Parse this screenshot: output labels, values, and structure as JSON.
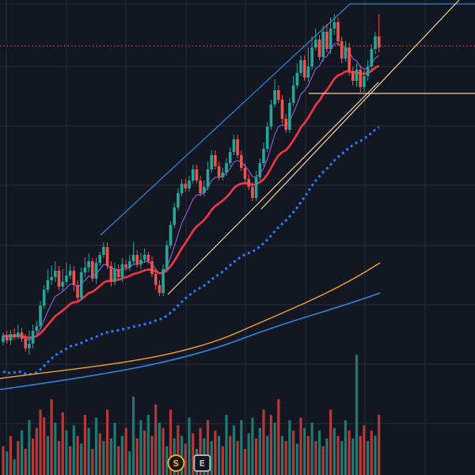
{
  "chart_data": {
    "type": "candlestick",
    "grid": true,
    "background": "#131722",
    "colors": {
      "up": "#26a69a",
      "down": "#ef5350",
      "vol_up": "#1f7a72",
      "vol_down": "#b23a3a",
      "ema_fast": "#7e57c2",
      "ema_mid": "#f23645",
      "ma_dotted": "#2979ff",
      "ma_orange": "#f59f2c",
      "ma_blue": "#2e86de",
      "channel_blue": "#2e86de",
      "channel_cream": "#f5d29b",
      "price_line": "#ef5350"
    },
    "candles": [
      [
        0,
        432,
        424,
        420,
        436
      ],
      [
        1,
        424,
        430,
        418,
        434
      ],
      [
        2,
        430,
        422,
        417,
        436
      ],
      [
        3,
        422,
        426,
        415,
        430
      ],
      [
        4,
        426,
        420,
        410,
        428
      ],
      [
        5,
        420,
        428,
        414,
        432
      ],
      [
        6,
        428,
        440,
        422,
        444
      ],
      [
        7,
        440,
        434,
        418,
        448
      ],
      [
        8,
        434,
        418,
        410,
        440
      ],
      [
        9,
        418,
        412,
        405,
        422
      ],
      [
        10,
        412,
        386,
        380,
        416
      ],
      [
        11,
        386,
        366,
        360,
        390
      ],
      [
        12,
        366,
        354,
        340,
        370
      ],
      [
        13,
        354,
        350,
        335,
        360
      ],
      [
        14,
        350,
        342,
        330,
        356
      ],
      [
        15,
        342,
        362,
        336,
        366
      ],
      [
        16,
        362,
        356,
        340,
        368
      ],
      [
        17,
        356,
        348,
        332,
        360
      ],
      [
        18,
        348,
        342,
        334,
        352
      ],
      [
        19,
        342,
        360,
        336,
        368
      ],
      [
        20,
        360,
        376,
        354,
        380
      ],
      [
        21,
        376,
        344,
        338,
        380
      ],
      [
        22,
        344,
        338,
        325,
        350
      ],
      [
        23,
        338,
        330,
        320,
        344
      ],
      [
        24,
        330,
        352,
        326,
        356
      ],
      [
        25,
        352,
        332,
        326,
        358
      ],
      [
        26,
        332,
        322,
        318,
        336
      ],
      [
        27,
        322,
        312,
        306,
        326
      ],
      [
        28,
        312,
        336,
        306,
        340
      ],
      [
        29,
        336,
        356,
        330,
        362
      ],
      [
        30,
        356,
        340,
        332,
        360
      ],
      [
        31,
        340,
        350,
        334,
        354
      ],
      [
        32,
        350,
        334,
        326,
        356
      ],
      [
        33,
        334,
        338,
        328,
        342
      ],
      [
        34,
        338,
        330,
        322,
        342
      ],
      [
        35,
        330,
        322,
        306,
        334
      ],
      [
        36,
        322,
        334,
        316,
        338
      ],
      [
        37,
        334,
        328,
        320,
        340
      ],
      [
        38,
        328,
        322,
        314,
        332
      ],
      [
        39,
        322,
        330,
        318,
        334
      ],
      [
        40,
        330,
        346,
        324,
        350
      ],
      [
        41,
        346,
        360,
        340,
        366
      ],
      [
        42,
        360,
        370,
        354,
        374
      ],
      [
        43,
        370,
        340,
        334,
        374
      ],
      [
        44,
        340,
        310,
        304,
        344
      ],
      [
        45,
        310,
        284,
        280,
        314
      ],
      [
        46,
        284,
        262,
        256,
        288
      ],
      [
        47,
        262,
        244,
        238,
        266
      ],
      [
        48,
        244,
        232,
        226,
        248
      ],
      [
        49,
        232,
        238,
        226,
        242
      ],
      [
        50,
        238,
        228,
        222,
        242
      ],
      [
        51,
        228,
        214,
        208,
        232
      ],
      [
        52,
        214,
        228,
        208,
        232
      ],
      [
        53,
        228,
        244,
        222,
        248
      ],
      [
        54,
        244,
        236,
        228,
        248
      ],
      [
        55,
        236,
        214,
        204,
        240
      ],
      [
        56,
        214,
        196,
        190,
        218
      ],
      [
        57,
        196,
        210,
        190,
        214
      ],
      [
        58,
        210,
        224,
        204,
        228
      ],
      [
        59,
        224,
        218,
        212,
        228
      ],
      [
        60,
        218,
        206,
        200,
        222
      ],
      [
        61,
        206,
        192,
        186,
        210
      ],
      [
        62,
        192,
        176,
        170,
        196
      ],
      [
        63,
        176,
        196,
        170,
        200
      ],
      [
        64,
        196,
        212,
        190,
        216
      ],
      [
        65,
        212,
        226,
        206,
        232
      ],
      [
        66,
        226,
        236,
        220,
        240
      ],
      [
        67,
        236,
        250,
        230,
        254
      ],
      [
        68,
        250,
        224,
        216,
        254
      ],
      [
        69,
        224,
        206,
        200,
        228
      ],
      [
        70,
        206,
        188,
        180,
        210
      ],
      [
        71,
        188,
        160,
        154,
        192
      ],
      [
        72,
        160,
        132,
        126,
        164
      ],
      [
        73,
        132,
        114,
        100,
        136
      ],
      [
        74,
        114,
        126,
        108,
        130
      ],
      [
        75,
        126,
        150,
        120,
        156
      ],
      [
        76,
        150,
        164,
        144,
        168
      ],
      [
        77,
        164,
        130,
        124,
        168
      ],
      [
        78,
        130,
        108,
        96,
        134
      ],
      [
        79,
        108,
        92,
        80,
        112
      ],
      [
        80,
        92,
        76,
        70,
        96
      ],
      [
        81,
        76,
        98,
        70,
        102
      ],
      [
        82,
        98,
        84,
        60,
        104
      ],
      [
        83,
        84,
        60,
        46,
        88
      ],
      [
        84,
        60,
        50,
        36,
        64
      ],
      [
        85,
        50,
        72,
        44,
        76
      ],
      [
        86,
        72,
        40,
        32,
        78
      ],
      [
        87,
        40,
        62,
        30,
        66
      ],
      [
        88,
        62,
        36,
        22,
        68
      ],
      [
        89,
        36,
        28,
        18,
        44
      ],
      [
        90,
        28,
        52,
        22,
        58
      ],
      [
        91,
        52,
        74,
        46,
        80
      ],
      [
        92,
        74,
        60,
        52,
        78
      ],
      [
        93,
        60,
        90,
        54,
        96
      ],
      [
        94,
        90,
        102,
        84,
        108
      ],
      [
        95,
        102,
        88,
        80,
        110
      ],
      [
        96,
        88,
        110,
        82,
        118
      ],
      [
        97,
        110,
        96,
        88,
        116
      ],
      [
        98,
        96,
        84,
        76,
        102
      ],
      [
        99,
        84,
        62,
        56,
        88
      ],
      [
        100,
        62,
        46,
        40,
        68
      ],
      [
        101,
        46,
        60,
        18,
        66
      ]
    ],
    "volume": [
      [
        0,
        0.22,
        "d"
      ],
      [
        1,
        0.18,
        "u"
      ],
      [
        2,
        0.3,
        "d"
      ],
      [
        3,
        0.12,
        "u"
      ],
      [
        4,
        0.26,
        "d"
      ],
      [
        5,
        0.34,
        "u"
      ],
      [
        6,
        0.2,
        "d"
      ],
      [
        7,
        0.42,
        "u"
      ],
      [
        8,
        0.28,
        "d"
      ],
      [
        9,
        0.36,
        "d"
      ],
      [
        10,
        0.5,
        "d"
      ],
      [
        11,
        0.44,
        "d"
      ],
      [
        12,
        0.3,
        "u"
      ],
      [
        13,
        0.58,
        "d"
      ],
      [
        14,
        0.4,
        "u"
      ],
      [
        15,
        0.26,
        "d"
      ],
      [
        16,
        0.48,
        "d"
      ],
      [
        17,
        0.34,
        "u"
      ],
      [
        18,
        0.22,
        "d"
      ],
      [
        19,
        0.38,
        "u"
      ],
      [
        20,
        0.3,
        "d"
      ],
      [
        21,
        0.24,
        "u"
      ],
      [
        22,
        0.46,
        "d"
      ],
      [
        23,
        0.36,
        "u"
      ],
      [
        24,
        0.2,
        "d"
      ],
      [
        25,
        0.44,
        "u"
      ],
      [
        26,
        0.32,
        "d"
      ],
      [
        27,
        0.26,
        "u"
      ],
      [
        28,
        0.5,
        "d"
      ],
      [
        29,
        0.28,
        "u"
      ],
      [
        30,
        0.4,
        "u"
      ],
      [
        31,
        0.22,
        "d"
      ],
      [
        32,
        0.3,
        "u"
      ],
      [
        33,
        0.36,
        "d"
      ],
      [
        34,
        0.18,
        "u"
      ],
      [
        35,
        0.6,
        "u"
      ],
      [
        36,
        0.28,
        "d"
      ],
      [
        37,
        0.42,
        "u"
      ],
      [
        38,
        0.34,
        "d"
      ],
      [
        39,
        0.46,
        "u"
      ],
      [
        40,
        0.3,
        "d"
      ],
      [
        41,
        0.54,
        "d"
      ],
      [
        42,
        0.4,
        "u"
      ],
      [
        43,
        0.36,
        "d"
      ],
      [
        44,
        0.22,
        "u"
      ],
      [
        45,
        0.5,
        "d"
      ],
      [
        46,
        0.28,
        "u"
      ],
      [
        47,
        0.38,
        "d"
      ],
      [
        48,
        0.3,
        "u"
      ],
      [
        49,
        0.24,
        "d"
      ],
      [
        50,
        0.44,
        "u"
      ],
      [
        51,
        0.32,
        "d"
      ],
      [
        52,
        0.2,
        "u"
      ],
      [
        53,
        0.36,
        "d"
      ],
      [
        54,
        0.28,
        "u"
      ],
      [
        55,
        0.42,
        "d"
      ],
      [
        56,
        0.26,
        "u"
      ],
      [
        57,
        0.34,
        "d"
      ],
      [
        58,
        0.3,
        "u"
      ],
      [
        59,
        0.22,
        "d"
      ],
      [
        60,
        0.46,
        "u"
      ],
      [
        61,
        0.3,
        "d"
      ],
      [
        62,
        0.38,
        "u"
      ],
      [
        63,
        0.26,
        "d"
      ],
      [
        64,
        0.42,
        "u"
      ],
      [
        65,
        0.2,
        "d"
      ],
      [
        66,
        0.32,
        "u"
      ],
      [
        67,
        0.44,
        "u"
      ],
      [
        68,
        0.28,
        "d"
      ],
      [
        69,
        0.36,
        "u"
      ],
      [
        70,
        0.5,
        "d"
      ],
      [
        71,
        0.3,
        "u"
      ],
      [
        72,
        0.46,
        "d"
      ],
      [
        73,
        0.4,
        "u"
      ],
      [
        74,
        0.58,
        "d"
      ],
      [
        75,
        0.3,
        "u"
      ],
      [
        76,
        0.26,
        "d"
      ],
      [
        77,
        0.42,
        "u"
      ],
      [
        78,
        0.34,
        "d"
      ],
      [
        79,
        0.24,
        "u"
      ],
      [
        80,
        0.44,
        "d"
      ],
      [
        81,
        0.36,
        "u"
      ],
      [
        82,
        0.3,
        "d"
      ],
      [
        83,
        0.4,
        "u"
      ],
      [
        84,
        0.26,
        "d"
      ],
      [
        85,
        0.34,
        "u"
      ],
      [
        86,
        0.22,
        "d"
      ],
      [
        87,
        0.28,
        "u"
      ],
      [
        88,
        0.5,
        "d"
      ],
      [
        89,
        0.36,
        "u"
      ],
      [
        90,
        0.3,
        "d"
      ],
      [
        91,
        0.26,
        "u"
      ],
      [
        92,
        0.42,
        "u"
      ],
      [
        93,
        0.34,
        "d"
      ],
      [
        94,
        0.28,
        "u"
      ],
      [
        95,
        0.92,
        "u"
      ],
      [
        96,
        0.3,
        "d"
      ],
      [
        97,
        0.38,
        "d"
      ],
      [
        98,
        0.26,
        "u"
      ],
      [
        99,
        0.34,
        "d"
      ],
      [
        100,
        0.3,
        "u"
      ],
      [
        101,
        0.46,
        "d"
      ]
    ],
    "current_price": 58,
    "badges": [
      {
        "label": "S",
        "kind": "split",
        "color": "#f5a623",
        "bar": 42
      },
      {
        "label": "E",
        "kind": "earnings",
        "color": "#b2b5be",
        "bar": 49
      }
    ]
  }
}
